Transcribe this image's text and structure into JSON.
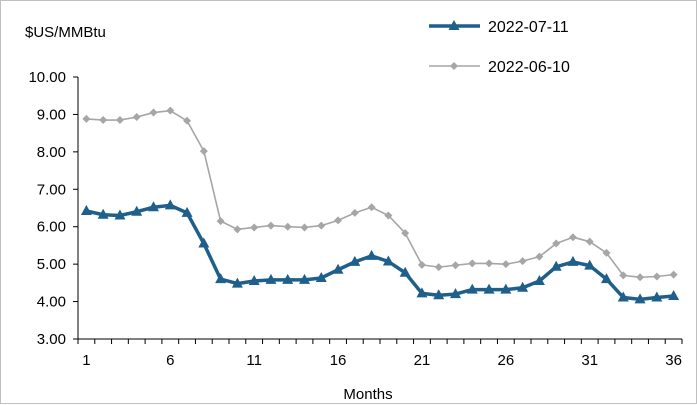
{
  "chart_data": {
    "type": "line",
    "y_unit_label": "$US/MMBtu",
    "xlabel": "Months",
    "ylim": [
      3.0,
      10.0
    ],
    "y_ticks": [
      "3.00",
      "4.00",
      "5.00",
      "6.00",
      "7.00",
      "8.00",
      "9.00",
      "10.00"
    ],
    "x_tick_labels": [
      "1",
      "6",
      "11",
      "16",
      "21",
      "26",
      "31",
      "36"
    ],
    "x": [
      1,
      2,
      3,
      4,
      5,
      6,
      7,
      8,
      9,
      10,
      11,
      12,
      13,
      14,
      15,
      16,
      17,
      18,
      19,
      20,
      21,
      22,
      23,
      24,
      25,
      26,
      27,
      28,
      29,
      30,
      31,
      32,
      33,
      34,
      35,
      36
    ],
    "grid": false,
    "legend_position": "top-right",
    "series": [
      {
        "name": "2022-07-11",
        "color": "#1f5f8b",
        "marker": "triangle",
        "values": [
          6.42,
          6.32,
          6.3,
          6.4,
          6.52,
          6.57,
          6.37,
          5.55,
          4.6,
          4.48,
          4.55,
          4.58,
          4.58,
          4.58,
          4.63,
          4.85,
          5.06,
          5.22,
          5.07,
          4.77,
          4.22,
          4.17,
          4.2,
          4.32,
          4.32,
          4.32,
          4.37,
          4.55,
          4.93,
          5.06,
          4.96,
          4.6,
          4.11,
          4.06,
          4.11,
          4.15
        ]
      },
      {
        "name": "2022-06-10",
        "color": "#a6a6a6",
        "marker": "diamond",
        "values": [
          8.88,
          8.85,
          8.85,
          8.93,
          9.05,
          9.1,
          8.83,
          8.02,
          6.15,
          5.93,
          5.98,
          6.03,
          6.0,
          5.98,
          6.03,
          6.17,
          6.37,
          6.52,
          6.3,
          5.83,
          4.98,
          4.92,
          4.97,
          5.02,
          5.02,
          5.0,
          5.08,
          5.2,
          5.55,
          5.72,
          5.6,
          5.3,
          4.7,
          4.65,
          4.67,
          4.72
        ]
      }
    ]
  }
}
